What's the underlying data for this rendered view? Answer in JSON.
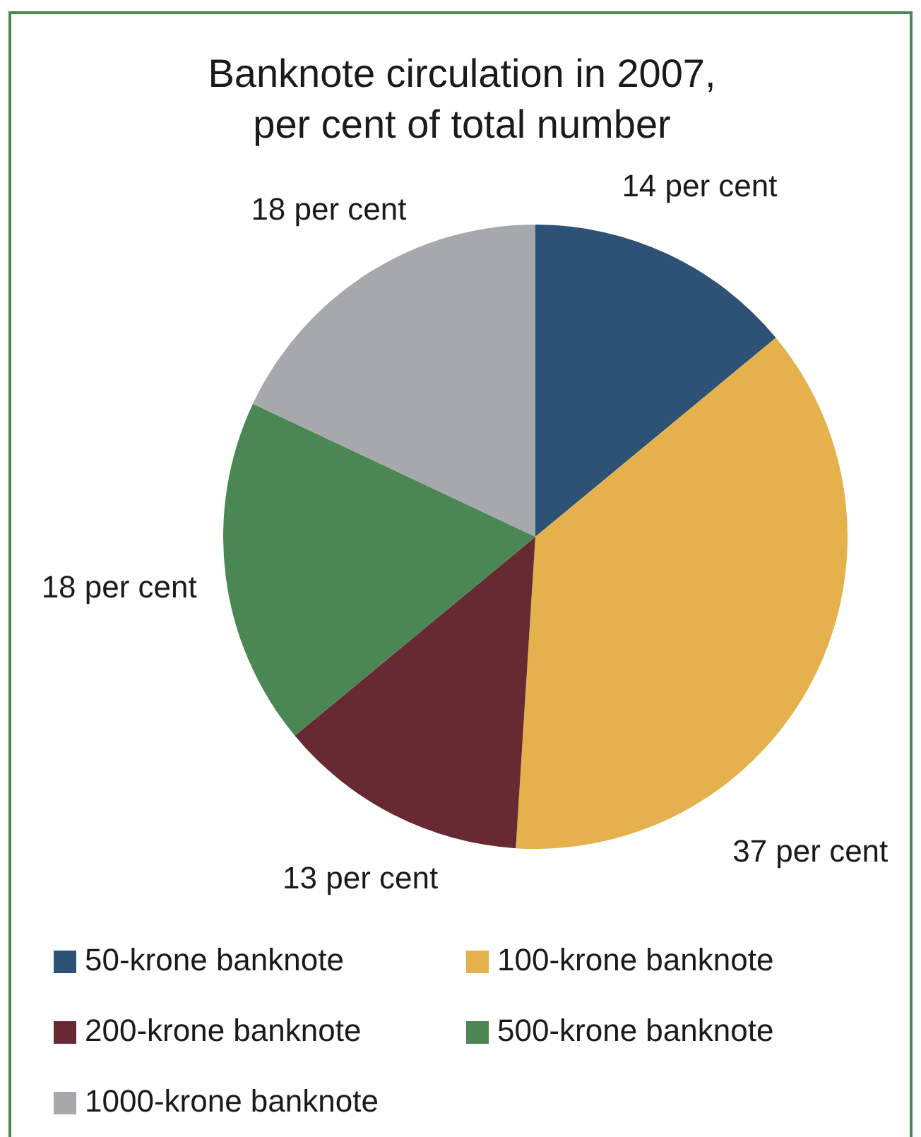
{
  "chart_data": {
    "type": "pie",
    "title": "Banknote circulation in 2007,\nper cent of total number",
    "categories": [
      "50-krone banknote",
      "100-krone banknote",
      "200-krone banknote",
      "500-krone banknote",
      "1000-krone banknote"
    ],
    "values": [
      14,
      37,
      13,
      18,
      18
    ],
    "colors": [
      "#2d5275",
      "#e4b14d",
      "#672a33",
      "#4a8754",
      "#a7a8ac"
    ],
    "value_labels": [
      "14 per cent",
      "37 per cent",
      "13 per cent",
      "18 per cent",
      "18 per cent"
    ],
    "legend": "bottom"
  }
}
